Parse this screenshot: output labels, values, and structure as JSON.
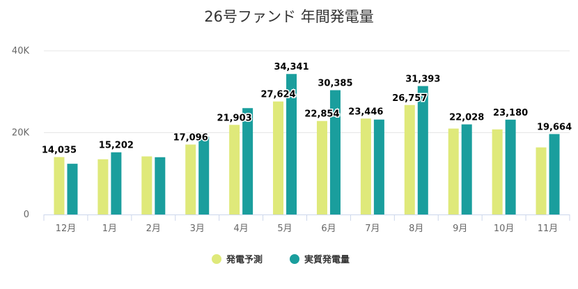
{
  "chart_data": {
    "type": "bar",
    "title": "26号ファンド 年間発電量",
    "categories": [
      "12月",
      "1月",
      "2月",
      "3月",
      "4月",
      "5月",
      "6月",
      "7月",
      "8月",
      "9月",
      "10月",
      "11月"
    ],
    "series": [
      {
        "name": "発電予測",
        "color": "#dfe97a",
        "values": [
          14035,
          13500,
          14200,
          17096,
          21903,
          27624,
          22854,
          23446,
          26757,
          21000,
          20800,
          16400
        ]
      },
      {
        "name": "実質発電量",
        "color": "#1a9e9d",
        "values": [
          12400,
          15202,
          14000,
          19000,
          26000,
          34341,
          30385,
          23200,
          31393,
          22028,
          23180,
          19664
        ]
      }
    ],
    "data_labels": [
      {
        "category": "12月",
        "series": "発電予測",
        "text": "14,035"
      },
      {
        "category": "1月",
        "series": "実質発電量",
        "text": "15,202"
      },
      {
        "category": "3月",
        "series": "発電予測",
        "text": "17,096"
      },
      {
        "category": "4月",
        "series": "発電予測",
        "text": "21,903"
      },
      {
        "category": "5月",
        "series": "発電予測",
        "text": "27,624"
      },
      {
        "category": "5月",
        "series": "実質発電量",
        "text": "34,341"
      },
      {
        "category": "6月",
        "series": "発電予測",
        "text": "22,854"
      },
      {
        "category": "6月",
        "series": "実質発電量",
        "text": "30,385"
      },
      {
        "category": "7月",
        "series": "発電予測",
        "text": "23,446"
      },
      {
        "category": "8月",
        "series": "発電予測",
        "text": "26,757"
      },
      {
        "category": "8月",
        "series": "実質発電量",
        "text": "31,393"
      },
      {
        "category": "9月",
        "series": "実質発電量",
        "text": "22,028"
      },
      {
        "category": "10月",
        "series": "実質発電量",
        "text": "23,180"
      },
      {
        "category": "11月",
        "series": "実質発電量",
        "text": "19,664"
      }
    ],
    "yticks": [
      {
        "value": 0,
        "label": "0"
      },
      {
        "value": 20000,
        "label": "20K"
      },
      {
        "value": 40000,
        "label": "40K"
      }
    ],
    "ylim": [
      0,
      40000
    ],
    "xlabel": "",
    "ylabel": "",
    "grid": true,
    "legend_position": "bottom-center"
  }
}
